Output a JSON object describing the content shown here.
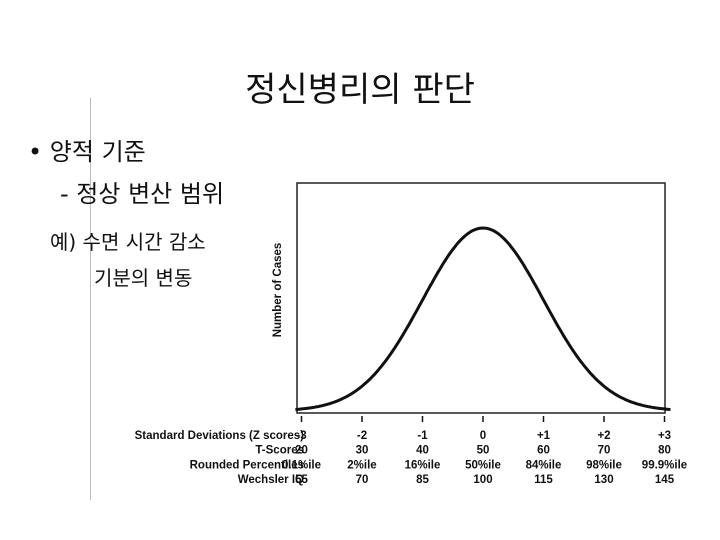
{
  "title": "정신병리의 판단",
  "bullets": [
    "• 양적 기준",
    "- 정상 변산 범위",
    "예) 수면 시간 감소",
    "기분의 변동"
  ],
  "figure": {
    "y_label": "Number of Cases",
    "rows": [
      {
        "label": "Standard Deviations (Z scores)",
        "cells": [
          "-3",
          "-2",
          "-1",
          "0",
          "+1",
          "+2",
          "+3"
        ]
      },
      {
        "label": "T-Scores",
        "cells": [
          "20",
          "30",
          "40",
          "50",
          "60",
          "70",
          "80"
        ]
      },
      {
        "label": "Rounded Percentiles",
        "cells": [
          "0.1%ile",
          "2%ile",
          "16%ile",
          "50%ile",
          "84%ile",
          "98%ile",
          "99.9%ile"
        ]
      },
      {
        "label": "Wechsler IQ",
        "cells": [
          "55",
          "70",
          "85",
          "100",
          "115",
          "130",
          "145"
        ]
      }
    ]
  }
}
